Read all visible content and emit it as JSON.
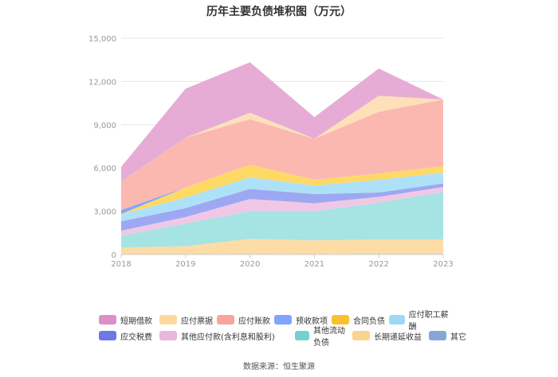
{
  "chart_data": {
    "type": "area",
    "stacked": true,
    "title": "历年主要负债堆积图（万元）",
    "x": [
      "2018",
      "2019",
      "2020",
      "2021",
      "2022",
      "2023"
    ],
    "ylim": [
      0,
      15000
    ],
    "yticks": [
      "0",
      "3,000",
      "6,000",
      "9,000",
      "12,000",
      "15,000"
    ],
    "grid": true,
    "legend_position": "bottom",
    "series": [
      {
        "name": "其它",
        "color": "#8fa8d6",
        "values": [
          30,
          30,
          40,
          30,
          40,
          40
        ]
      },
      {
        "name": "长期递延收益",
        "color": "#fddca6",
        "values": [
          450,
          550,
          1050,
          950,
          1000,
          1000
        ]
      },
      {
        "name": "其他流动负债",
        "color": "#a6e3e3",
        "values": [
          820,
          1570,
          1910,
          2020,
          2560,
          3290
        ]
      },
      {
        "name": "其他应付款(含利息和股利)",
        "color": "#f0c8e6",
        "values": [
          350,
          450,
          850,
          550,
          400,
          350
        ]
      },
      {
        "name": "应交税费",
        "color": "#9ea8f2",
        "values": [
          650,
          620,
          700,
          640,
          300,
          250
        ]
      },
      {
        "name": "应付职工薪酬",
        "color": "#ade1f8",
        "values": [
          480,
          730,
          800,
          600,
          880,
          750
        ]
      },
      {
        "name": "合同负债",
        "color": "#ffd966",
        "values": [
          30,
          700,
          880,
          400,
          440,
          450
        ]
      },
      {
        "name": "预收款项",
        "color": "#7fa5ff",
        "values": [
          270,
          0,
          0,
          0,
          0,
          0
        ]
      },
      {
        "name": "应付账款",
        "color": "#fbb8b1",
        "values": [
          2000,
          3450,
          3150,
          2840,
          4280,
          4620
        ]
      },
      {
        "name": "应付票据",
        "color": "#fde0b8",
        "values": [
          0,
          0,
          450,
          0,
          1100,
          0
        ]
      },
      {
        "name": "短期借款",
        "color": "#e6acd6",
        "values": [
          1000,
          3400,
          3500,
          1500,
          1900,
          0
        ]
      }
    ]
  },
  "legend": {
    "row1": [
      "短期借款",
      "应付票据",
      "应付账款",
      "预收款项",
      "合同负债",
      "应付职工薪酬"
    ],
    "row2": [
      "应交税费",
      "其他应付款(含利息和股利)",
      "其他流动负债",
      "长期递延收益",
      "其它"
    ],
    "colors": {
      "短期借款": "#dd8fc8",
      "应付票据": "#fdd9a0",
      "应付账款": "#f9a59c",
      "预收款项": "#7fa5ff",
      "合同负债": "#fbc02d",
      "应付职工薪酬": "#9dd9f3",
      "应交税费": "#6e77e8",
      "其他应付款(含利息和股利)": "#e9b6dd",
      "其他流动负债": "#74d1d1",
      "长期递延收益": "#fcd38c",
      "其它": "#89a7d6"
    }
  },
  "source": "数据来源：恒生聚源"
}
